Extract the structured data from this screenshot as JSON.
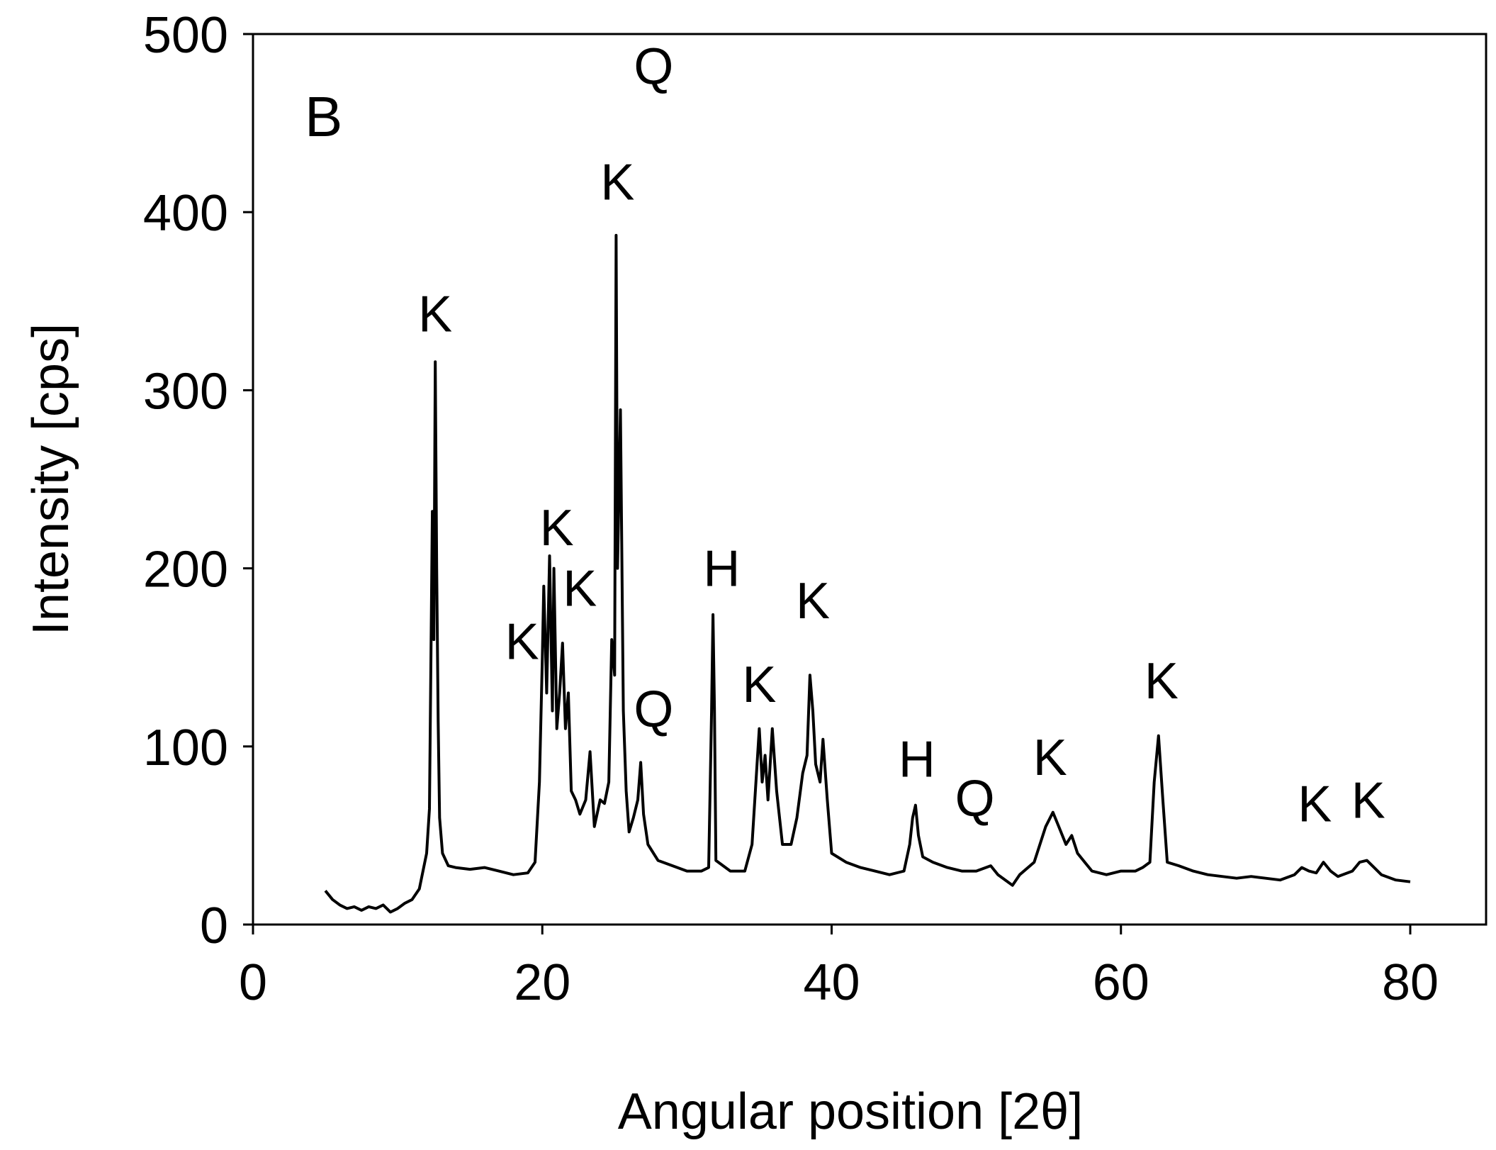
{
  "chart_data": {
    "type": "line",
    "panel_label": "B",
    "xlabel": "Angular position [2θ]",
    "ylabel": "Intensity [cps]",
    "xlim": [
      0,
      80
    ],
    "ylim": [
      0,
      500
    ],
    "x_ticks": [
      0,
      20,
      40,
      60,
      80
    ],
    "y_ticks": [
      0,
      100,
      200,
      300,
      400,
      500
    ],
    "grid": false,
    "line_color": "#000000",
    "series": [
      {
        "points": [
          [
            5.0,
            19
          ],
          [
            5.5,
            14
          ],
          [
            6.0,
            11
          ],
          [
            6.5,
            9
          ],
          [
            7.0,
            10
          ],
          [
            7.5,
            8
          ],
          [
            8.0,
            10
          ],
          [
            8.5,
            9
          ],
          [
            9.0,
            11
          ],
          [
            9.5,
            7
          ],
          [
            10.0,
            9
          ],
          [
            10.5,
            12
          ],
          [
            11.0,
            14
          ],
          [
            11.5,
            20
          ],
          [
            12.0,
            40
          ],
          [
            12.2,
            65
          ],
          [
            12.3,
            150
          ],
          [
            12.4,
            232
          ],
          [
            12.5,
            160
          ],
          [
            12.6,
            316
          ],
          [
            12.7,
            200
          ],
          [
            12.8,
            114
          ],
          [
            12.9,
            60
          ],
          [
            13.1,
            40
          ],
          [
            13.5,
            33
          ],
          [
            14.0,
            32
          ],
          [
            15.0,
            31
          ],
          [
            16.0,
            32
          ],
          [
            17.0,
            30
          ],
          [
            18.0,
            28
          ],
          [
            19.0,
            29
          ],
          [
            19.5,
            35
          ],
          [
            19.8,
            80
          ],
          [
            20.0,
            150
          ],
          [
            20.1,
            190
          ],
          [
            20.3,
            130
          ],
          [
            20.5,
            207
          ],
          [
            20.7,
            120
          ],
          [
            20.8,
            200
          ],
          [
            21.0,
            110
          ],
          [
            21.2,
            130
          ],
          [
            21.4,
            158
          ],
          [
            21.6,
            110
          ],
          [
            21.8,
            130
          ],
          [
            22.0,
            75
          ],
          [
            22.3,
            70
          ],
          [
            22.6,
            62
          ],
          [
            23.0,
            70
          ],
          [
            23.3,
            97
          ],
          [
            23.6,
            55
          ],
          [
            24.0,
            70
          ],
          [
            24.3,
            68
          ],
          [
            24.6,
            80
          ],
          [
            24.8,
            160
          ],
          [
            25.0,
            140
          ],
          [
            25.1,
            387
          ],
          [
            25.2,
            200
          ],
          [
            25.4,
            289
          ],
          [
            25.6,
            120
          ],
          [
            25.8,
            75
          ],
          [
            26.0,
            52
          ],
          [
            26.3,
            60
          ],
          [
            26.6,
            70
          ],
          [
            26.8,
            91
          ],
          [
            27.0,
            62
          ],
          [
            27.3,
            45
          ],
          [
            28.0,
            36
          ],
          [
            29.0,
            33
          ],
          [
            30.0,
            30
          ],
          [
            31.0,
            30
          ],
          [
            31.5,
            32
          ],
          [
            31.7,
            120
          ],
          [
            31.8,
            174
          ],
          [
            31.9,
            120
          ],
          [
            32.0,
            36
          ],
          [
            33.0,
            30
          ],
          [
            34.0,
            30
          ],
          [
            34.5,
            45
          ],
          [
            35.0,
            110
          ],
          [
            35.2,
            80
          ],
          [
            35.4,
            95
          ],
          [
            35.6,
            70
          ],
          [
            35.9,
            110
          ],
          [
            36.2,
            75
          ],
          [
            36.6,
            45
          ],
          [
            37.2,
            45
          ],
          [
            37.6,
            60
          ],
          [
            38.0,
            85
          ],
          [
            38.3,
            95
          ],
          [
            38.5,
            140
          ],
          [
            38.7,
            120
          ],
          [
            38.9,
            90
          ],
          [
            39.2,
            80
          ],
          [
            39.4,
            104
          ],
          [
            39.7,
            70
          ],
          [
            40.0,
            40
          ],
          [
            41.0,
            35
          ],
          [
            42.0,
            32
          ],
          [
            43.0,
            30
          ],
          [
            44.0,
            28
          ],
          [
            45.0,
            30
          ],
          [
            45.4,
            45
          ],
          [
            45.6,
            60
          ],
          [
            45.8,
            67
          ],
          [
            46.0,
            50
          ],
          [
            46.3,
            38
          ],
          [
            47.0,
            35
          ],
          [
            48.0,
            32
          ],
          [
            49.0,
            30
          ],
          [
            50.0,
            30
          ],
          [
            51.0,
            33
          ],
          [
            51.5,
            28
          ],
          [
            52.0,
            25
          ],
          [
            52.5,
            22
          ],
          [
            53.0,
            28
          ],
          [
            54.0,
            35
          ],
          [
            54.8,
            55
          ],
          [
            55.3,
            63
          ],
          [
            55.7,
            55
          ],
          [
            56.2,
            45
          ],
          [
            56.6,
            50
          ],
          [
            57.0,
            40
          ],
          [
            57.5,
            35
          ],
          [
            58.0,
            30
          ],
          [
            59.0,
            28
          ],
          [
            60.0,
            30
          ],
          [
            61.0,
            30
          ],
          [
            61.5,
            32
          ],
          [
            62.0,
            35
          ],
          [
            62.3,
            80
          ],
          [
            62.6,
            106
          ],
          [
            62.9,
            70
          ],
          [
            63.2,
            35
          ],
          [
            64.0,
            33
          ],
          [
            65.0,
            30
          ],
          [
            66.0,
            28
          ],
          [
            67.0,
            27
          ],
          [
            68.0,
            26
          ],
          [
            69.0,
            27
          ],
          [
            70.0,
            26
          ],
          [
            71.0,
            25
          ],
          [
            72.0,
            28
          ],
          [
            72.5,
            32
          ],
          [
            73.0,
            30
          ],
          [
            73.5,
            29
          ],
          [
            74.0,
            35
          ],
          [
            74.5,
            30
          ],
          [
            75.0,
            27
          ],
          [
            76.0,
            30
          ],
          [
            76.5,
            35
          ],
          [
            77.0,
            36
          ],
          [
            77.5,
            32
          ],
          [
            78.0,
            28
          ],
          [
            79.0,
            25
          ],
          [
            80.0,
            24
          ]
        ]
      }
    ],
    "annotations": [
      {
        "text": "K",
        "x": 12.6,
        "y": 333
      },
      {
        "text": "K",
        "x": 21.0,
        "y": 213
      },
      {
        "text": "K",
        "x": 18.6,
        "y": 149
      },
      {
        "text": "K",
        "x": 22.6,
        "y": 179
      },
      {
        "text": "Q",
        "x": 27.7,
        "y": 472
      },
      {
        "text": "K",
        "x": 25.2,
        "y": 407
      },
      {
        "text": "Q",
        "x": 27.7,
        "y": 111
      },
      {
        "text": "H",
        "x": 32.4,
        "y": 190
      },
      {
        "text": "K",
        "x": 35.0,
        "y": 125
      },
      {
        "text": "K",
        "x": 38.7,
        "y": 172
      },
      {
        "text": "H",
        "x": 45.9,
        "y": 83
      },
      {
        "text": "Q",
        "x": 49.9,
        "y": 61
      },
      {
        "text": "K",
        "x": 55.1,
        "y": 84
      },
      {
        "text": "K",
        "x": 62.8,
        "y": 127
      },
      {
        "text": "K",
        "x": 73.4,
        "y": 58
      },
      {
        "text": "K",
        "x": 77.1,
        "y": 60
      }
    ]
  }
}
